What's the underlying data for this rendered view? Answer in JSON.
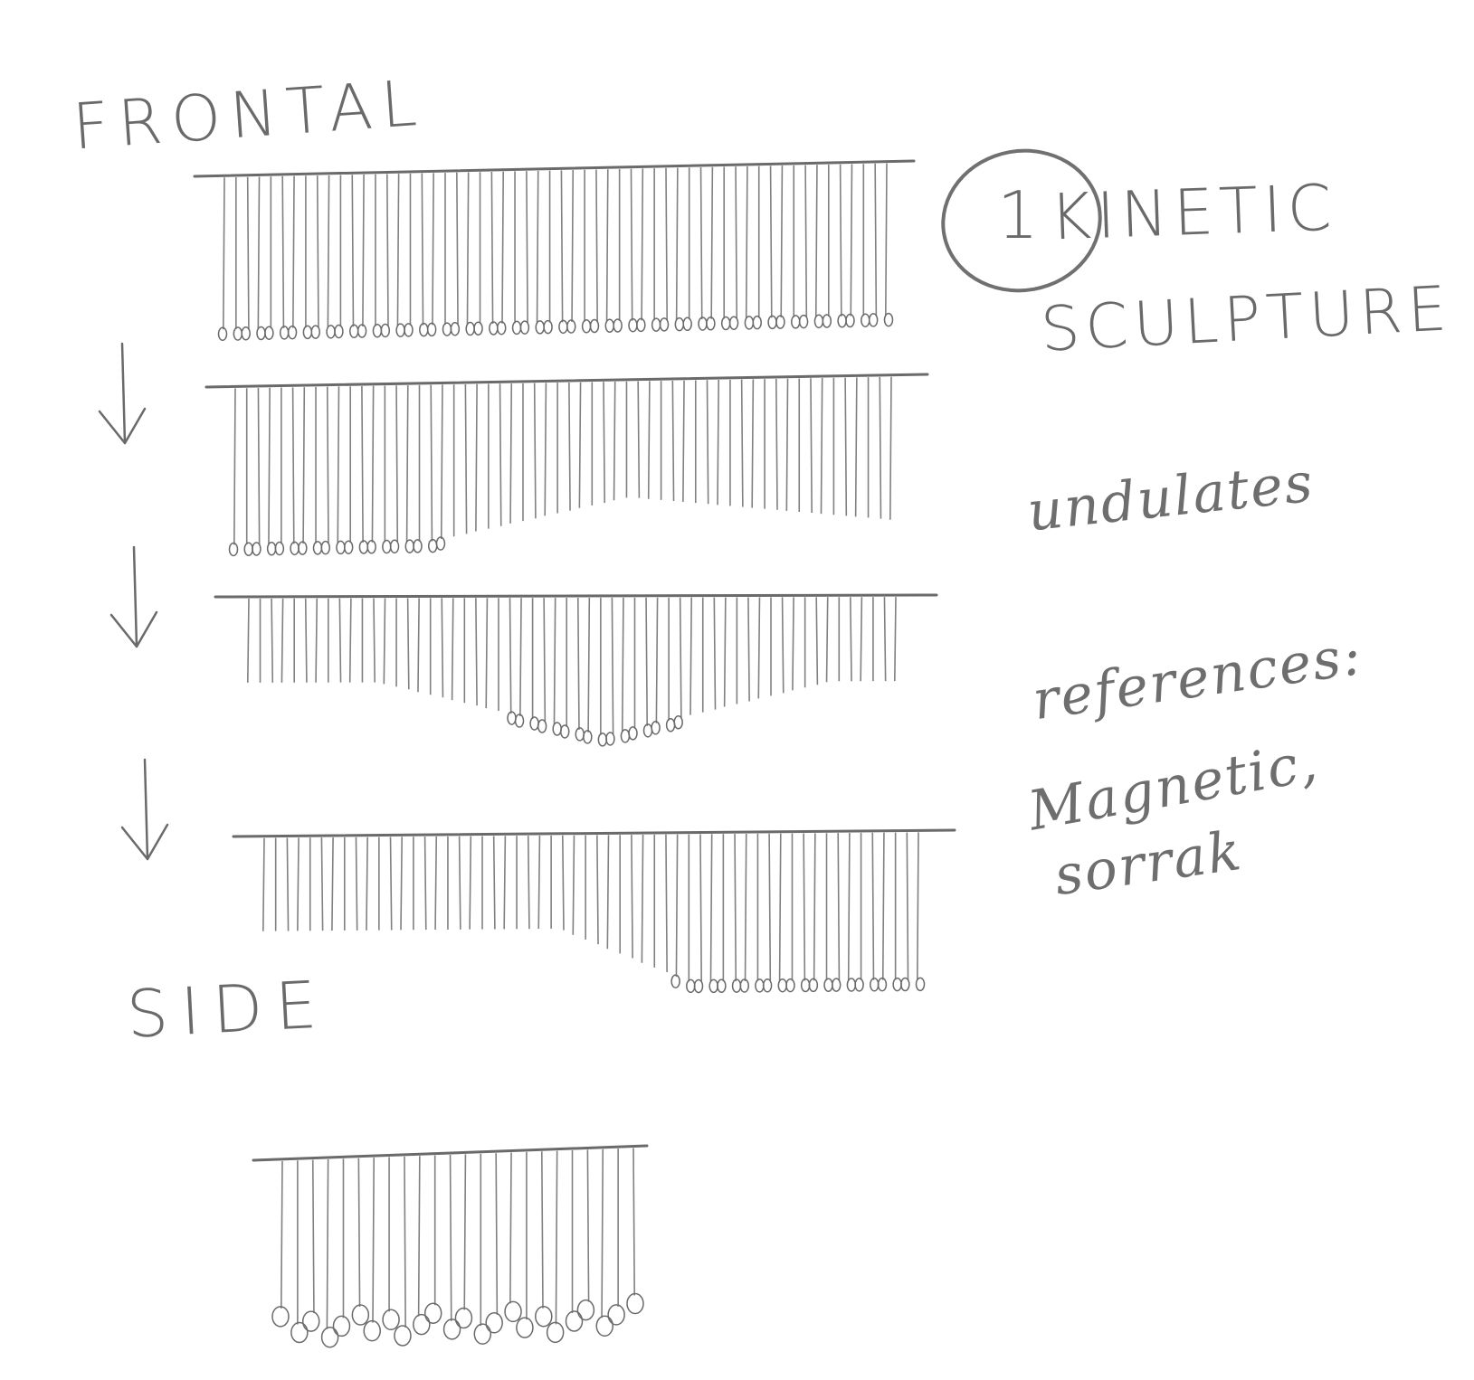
{
  "labels": {
    "frontal": "FRONTAL",
    "side": "SIDE"
  },
  "title": {
    "number": "1",
    "line1": "KINETIC",
    "line2": "SCULPTURE"
  },
  "notes": {
    "line1": "undulates",
    "line2": "references:",
    "line3": "Magnetic,",
    "line4": "sorrak"
  },
  "colors": {
    "paper": "#ffffff",
    "pencil": "#6a6a6a"
  },
  "icons": [
    "down-arrow-icon",
    "down-arrow-icon",
    "down-arrow-icon"
  ]
}
